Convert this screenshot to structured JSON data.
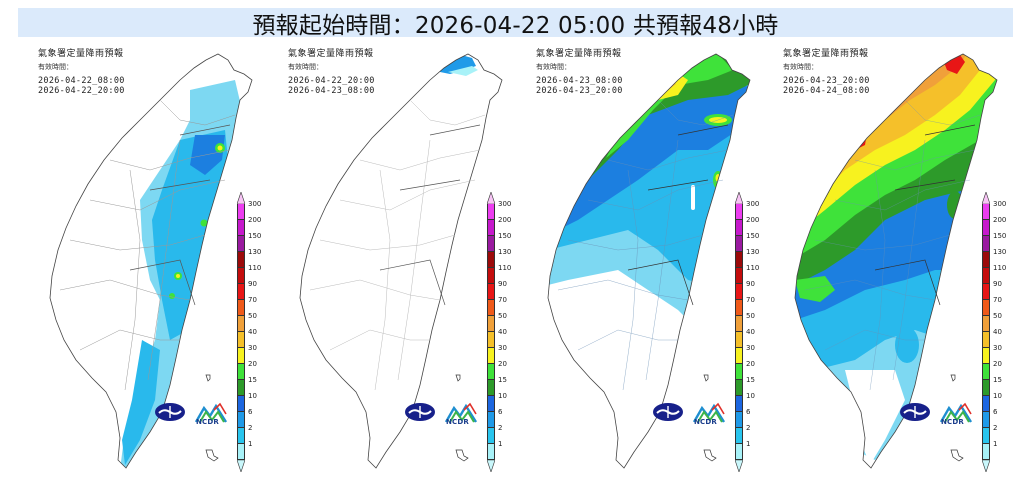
{
  "header": {
    "title": "預報起始時間：2026-04-22 05:00  共預報48小時",
    "background": "#dbeafb"
  },
  "panels": [
    {
      "title": "氣象署定量降雨預報",
      "valid_label": "有效時間：",
      "start": "2026-04-22_08:00",
      "end": "2026-04-22_20:00",
      "summary": "Light rain (1-15 mm) along central/east mountains and southeast coast; isolated 20-30 mm spots"
    },
    {
      "title": "氣象署定量降雨預報",
      "valid_label": "有效時間：",
      "start": "2026-04-22_20:00",
      "end": "2026-04-23_08:00",
      "summary": "Mostly dry; small 2-10 mm area at northern tip"
    },
    {
      "title": "氣象署定量降雨預報",
      "valid_label": "有效時間：",
      "start": "2026-04-23_08:00",
      "end": "2026-04-23_20:00",
      "summary": "15-40 mm north and northwest; 2-15 mm across central; south dry"
    },
    {
      "title": "氣象署定量降雨預報",
      "valid_label": "有效時間：",
      "start": "2026-04-23_20:00",
      "end": "2026-04-24_08:00",
      "summary": "40-90 mm north/northwest with red pockets; 15-30 mm central-west; 2-15 mm south/east"
    }
  ],
  "legend": {
    "unit": "mm",
    "levels": [
      "300",
      "200",
      "150",
      "130",
      "110",
      "90",
      "70",
      "50",
      "40",
      "30",
      "20",
      "15",
      "10",
      "6",
      "2",
      "1"
    ],
    "colors": [
      "#f7c4f5",
      "#ec3df0",
      "#c619cc",
      "#9a1aa0",
      "#9c0a0a",
      "#c40d0d",
      "#e81616",
      "#f05a1a",
      "#f0a03a",
      "#f5c02a",
      "#f7f21f",
      "#3fe23a",
      "#2d9a2a",
      "#1c66e0",
      "#1f9ae8",
      "#29c5ee",
      "#a8f2f8"
    ],
    "bottom_color": "#c9f7fb"
  },
  "logos": {
    "cwa": "CWA",
    "ncdr": "NCDR"
  },
  "chart_data": {
    "type": "heatmap",
    "title": "預報起始時間：2026-04-22 05:00  共預報48小時",
    "subtitle": "氣象署定量降雨預報",
    "colorbar_ticks": [
      1,
      2,
      6,
      10,
      15,
      20,
      30,
      40,
      50,
      70,
      90,
      110,
      130,
      150,
      200,
      300
    ],
    "colorbar_unit": "mm",
    "periods": [
      {
        "start": "2026-04-22 08:00",
        "end": "2026-04-22 20:00",
        "max_mm": 30,
        "north": 2,
        "central": 6,
        "east": 10,
        "south": 2
      },
      {
        "start": "2026-04-22 20:00",
        "end": "2026-04-23 08:00",
        "max_mm": 10,
        "north": 6,
        "central": 0,
        "east": 1,
        "south": 0
      },
      {
        "start": "2026-04-23 08:00",
        "end": "2026-04-23 20:00",
        "max_mm": 40,
        "north": 30,
        "central": 10,
        "east": 10,
        "south": 1
      },
      {
        "start": "2026-04-23 20:00",
        "end": "2026-04-24 08:00",
        "max_mm": 90,
        "north": 70,
        "central": 30,
        "east": 15,
        "south": 6
      }
    ]
  }
}
